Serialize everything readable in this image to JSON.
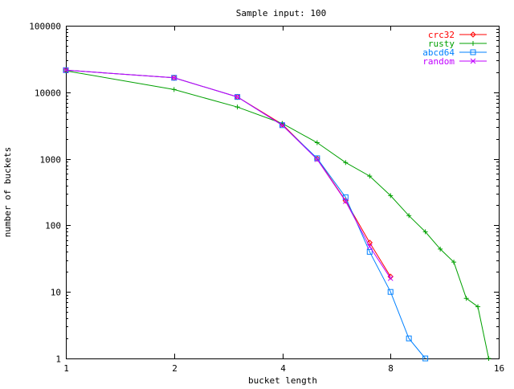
{
  "chart_data": {
    "type": "line",
    "title": "Sample input: 100",
    "xlabel": "bucket length",
    "ylabel": "number of buckets",
    "xscale": "log2",
    "yscale": "log10",
    "xlim": [
      1,
      16
    ],
    "ylim": [
      1,
      100000
    ],
    "x_ticks": [
      1,
      2,
      4,
      8,
      16
    ],
    "x_tick_labels": [
      "1",
      "2",
      "4",
      "8",
      "16"
    ],
    "y_ticks": [
      1,
      10,
      100,
      1000,
      10000,
      100000
    ],
    "y_tick_labels": [
      "1",
      "10",
      "100",
      "1000",
      "10000",
      "100000"
    ],
    "grid": false,
    "legend_position": "top-right",
    "series": [
      {
        "name": "crc32",
        "color": "#ff0000",
        "marker": "diamond",
        "x": [
          1,
          2,
          3,
          4,
          5,
          6,
          7,
          8
        ],
        "y": [
          21500,
          16500,
          8500,
          3300,
          1000,
          235,
          55,
          17
        ]
      },
      {
        "name": "rusty",
        "color": "#00a000",
        "marker": "plus",
        "x": [
          1,
          2,
          3,
          4,
          5,
          6,
          7,
          8,
          9,
          10,
          11,
          12,
          13,
          14,
          15
        ],
        "y": [
          21000,
          11000,
          6000,
          3400,
          1750,
          880,
          550,
          280,
          140,
          80,
          44,
          28,
          8,
          6,
          1
        ]
      },
      {
        "name": "abcd64",
        "color": "#0080ff",
        "marker": "square",
        "x": [
          1,
          2,
          3,
          4,
          5,
          6,
          7,
          8,
          9,
          10
        ],
        "y": [
          21500,
          16500,
          8500,
          3200,
          1020,
          265,
          40,
          10,
          2,
          1
        ]
      },
      {
        "name": "random",
        "color": "#c000ff",
        "marker": "cross",
        "x": [
          1,
          2,
          3,
          4,
          5,
          6,
          7,
          8
        ],
        "y": [
          21500,
          16500,
          8500,
          3200,
          980,
          230,
          48,
          16
        ]
      }
    ]
  }
}
